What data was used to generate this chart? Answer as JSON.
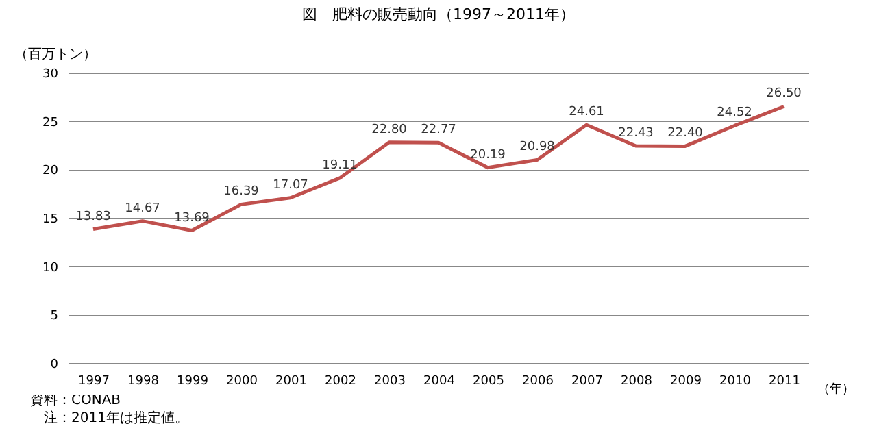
{
  "chart_data": {
    "type": "line",
    "title": "図　肥料の販売動向（1997～2011年）",
    "ylabel": "（百万トン）",
    "xlabel": "（年）",
    "categories": [
      "1997",
      "1998",
      "1999",
      "2000",
      "2001",
      "2002",
      "2003",
      "2004",
      "2005",
      "2006",
      "2007",
      "2008",
      "2009",
      "2010",
      "2011"
    ],
    "series": [
      {
        "color": "#c0504d",
        "values": [
          13.83,
          14.67,
          13.69,
          16.39,
          17.07,
          19.11,
          22.8,
          22.77,
          20.19,
          20.98,
          24.61,
          22.43,
          22.4,
          24.52,
          26.5
        ],
        "value_labels": [
          "13.83",
          "14.67",
          "13.69",
          "16.39",
          "17.07",
          "19.11",
          "22.80",
          "22.77",
          "20.19",
          "20.98",
          "24.61",
          "22.43",
          "22.40",
          "24.52",
          "26.50"
        ]
      }
    ],
    "ylim": [
      0,
      30
    ],
    "yticks": [
      0,
      5,
      10,
      15,
      20,
      25,
      30
    ],
    "grid": "y",
    "legend": false,
    "annotations": [
      "資料：CONAB",
      "注：2011年は推定値。"
    ]
  }
}
